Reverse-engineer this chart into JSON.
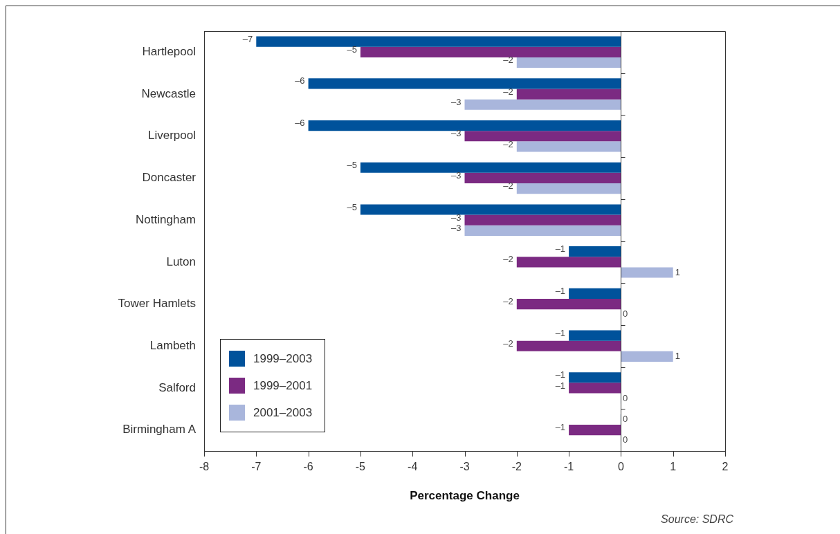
{
  "chart_data": {
    "type": "bar",
    "orientation": "horizontal",
    "xlabel": "Percentage Change",
    "annotations": [
      "Source: SDRC"
    ],
    "categories": [
      "Hartlepool",
      "Newcastle",
      "Liverpool",
      "Doncaster",
      "Nottingham",
      "Luton",
      "Tower Hamlets",
      "Lambeth",
      "Salford",
      "Birmingham A"
    ],
    "series": [
      {
        "name": "1999–2003",
        "color": "#00529b",
        "values": [
          -7,
          -6,
          -6,
          -5,
          -5,
          -1,
          -1,
          -1,
          -1,
          0
        ],
        "value_labels": [
          "–7",
          "–6",
          "–6",
          "–5",
          "–5",
          "–1",
          "–1",
          "–1",
          "–1",
          "0"
        ]
      },
      {
        "name": "1999–2001",
        "color": "#7b2a82",
        "values": [
          -5,
          -2,
          -3,
          -3,
          -3,
          -2,
          -2,
          -2,
          -1,
          -1
        ],
        "value_labels": [
          "–5",
          "–2",
          "–3",
          "–3",
          "–3",
          "–2",
          "–2",
          "–2",
          "–1",
          "–1"
        ]
      },
      {
        "name": "2001–2003",
        "color": "#a9b6dc",
        "values": [
          -2,
          -3,
          -2,
          -2,
          -3,
          1,
          0,
          1,
          0,
          0
        ],
        "value_labels": [
          "–2",
          "–3",
          "–2",
          "–2",
          "–3",
          "1",
          "0",
          "1",
          "0",
          "0"
        ]
      }
    ],
    "xlim": [
      -8,
      2
    ],
    "xticks": [
      -8,
      -7,
      -6,
      -5,
      -4,
      -3,
      -2,
      -1,
      0,
      1,
      2
    ],
    "grid": false,
    "ref_lines": [
      {
        "axis": "x",
        "value": 0,
        "color": "#333333"
      }
    ],
    "legend": "bottom left"
  }
}
